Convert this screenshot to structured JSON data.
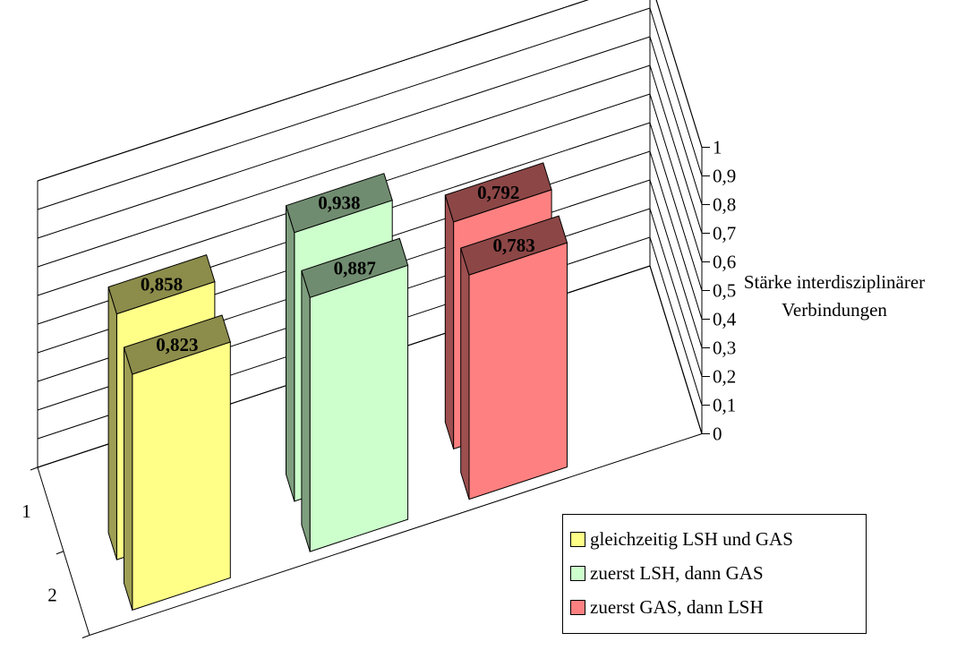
{
  "chart_data": {
    "type": "bar",
    "subtype": "3d-clustered-column",
    "title": "",
    "depth_categories": [
      "1",
      "2"
    ],
    "z_axis_title": "Stärke interdisziplinärer Verbindungen",
    "ylim": [
      0,
      1
    ],
    "y_ticks": [
      "0",
      "0,1",
      "0,2",
      "0,3",
      "0,4",
      "0,5",
      "0,6",
      "0,7",
      "0,8",
      "0,9",
      "1"
    ],
    "gridlines": true,
    "legend_position": "bottom-right",
    "series": [
      {
        "name": "gleichzeitig LSH und GAS",
        "color": "#ffff88",
        "values": [
          0.858,
          0.823
        ],
        "labels": [
          "0,858",
          "0,823"
        ]
      },
      {
        "name": "zuerst LSH, dann GAS",
        "color": "#ccffcc",
        "values": [
          0.938,
          0.887
        ],
        "labels": [
          "0,938",
          "0,887"
        ]
      },
      {
        "name": "zuerst GAS, dann LSH",
        "color": "#ff8080",
        "values": [
          0.792,
          0.783
        ],
        "labels": [
          "0,792",
          "0,783"
        ]
      }
    ]
  }
}
